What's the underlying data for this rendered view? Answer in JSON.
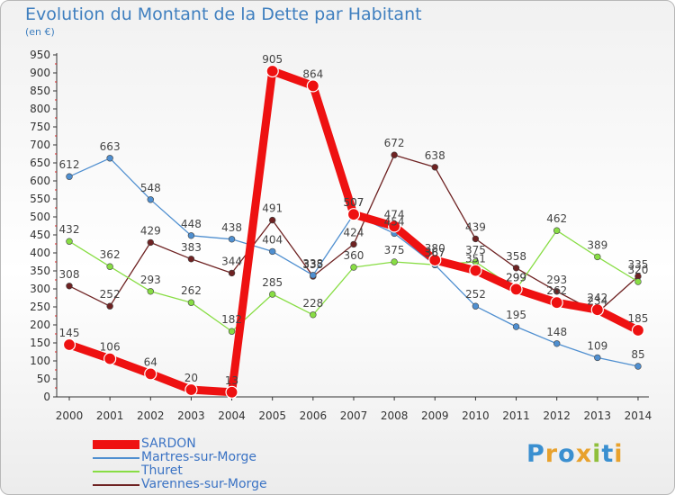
{
  "chart_data": {
    "type": "line",
    "title": "Evolution du Montant de la Dette par Habitant",
    "subtitle": "(en €)",
    "x": [
      "2000",
      "2001",
      "2002",
      "2003",
      "2004",
      "2005",
      "2006",
      "2007",
      "2008",
      "2009",
      "2010",
      "2011",
      "2012",
      "2013",
      "2014"
    ],
    "ylim": [
      0,
      950
    ],
    "yticks": [
      0,
      50,
      100,
      150,
      200,
      250,
      300,
      350,
      400,
      450,
      500,
      550,
      600,
      650,
      700,
      750,
      800,
      850,
      900,
      950
    ],
    "grid": false,
    "legend_position": "bottom-left",
    "series": [
      {
        "name": "SARDON",
        "color": "#ee1111",
        "values": [
          145,
          106,
          64,
          20,
          13,
          905,
          864,
          507,
          474,
          380,
          351,
          299,
          262,
          242,
          185
        ],
        "labels": [
          "145",
          "106",
          "64",
          "20",
          "13",
          "905",
          "864",
          "507",
          "474",
          "380",
          "351",
          "299",
          "262",
          "242",
          "185"
        ]
      },
      {
        "name": "Martres-sur-Morge",
        "color": "#4f8fd0",
        "values": [
          612,
          663,
          548,
          448,
          438,
          404,
          338,
          507,
          454,
          367,
          252,
          195,
          148,
          109,
          85
        ],
        "labels": [
          "612",
          "663",
          "548",
          "448",
          "438",
          "404",
          "338",
          "507",
          "454",
          "367",
          "252",
          "195",
          "148",
          "109",
          "85"
        ]
      },
      {
        "name": "Thuret",
        "color": "#88dd44",
        "values": [
          432,
          362,
          293,
          262,
          182,
          285,
          228,
          360,
          375,
          367,
          375,
          299,
          462,
          389,
          320
        ],
        "labels": [
          "432",
          "362",
          "293",
          "262",
          "182",
          "285",
          "228",
          "360",
          "375",
          "367",
          "375",
          "299",
          "462",
          "389",
          "320"
        ]
      },
      {
        "name": "Varennes-sur-Morge",
        "color": "#6e2222",
        "values": [
          308,
          252,
          429,
          383,
          344,
          491,
          335,
          424,
          672,
          638,
          439,
          358,
          293,
          234,
          335
        ],
        "labels": [
          "308",
          "252",
          "429",
          "383",
          "344",
          "491",
          "335",
          "424",
          "672",
          "638",
          "439",
          "358",
          "293",
          "234",
          "335"
        ]
      }
    ]
  },
  "branding": {
    "letters": [
      "P",
      "r",
      "o",
      "x",
      "i",
      "t",
      "i"
    ]
  }
}
